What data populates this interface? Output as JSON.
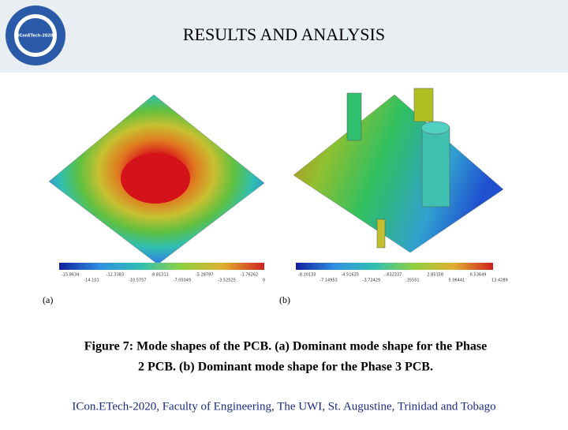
{
  "logo": {
    "text": "IConETech-2020"
  },
  "header": {
    "title": "RESULTS AND ANALYSIS"
  },
  "figure": {
    "panels": [
      {
        "label": "(a)",
        "scale_top": [
          "-15.8634",
          "-12.3383",
          "-8.81311",
          "-5.28787",
          "-1.76262"
        ],
        "scale_bottom": [
          "-14.101",
          "-10.5757",
          "-7.05049",
          "-3.52525",
          "0"
        ]
      },
      {
        "label": "(b)",
        "scale_top": [
          "-8.20133",
          "-4.51625",
          "-.832337",
          "2.85158",
          "6.53649"
        ],
        "scale_bottom": [
          "-7.14953",
          "-3.72429",
          ".35551",
          "5.06441",
          "13.4289"
        ]
      }
    ],
    "caption": [
      "Figure 7: Mode shapes of the PCB. (a) Dominant mode shape for the Phase",
      "2 PCB. (b) Dominant mode shape for the Phase 3 PCB."
    ]
  },
  "footer": {
    "text": "ICon.ETech-2020, Faculty of Engineering, The UWI, St. Augustine, Trinidad and Tobago"
  }
}
